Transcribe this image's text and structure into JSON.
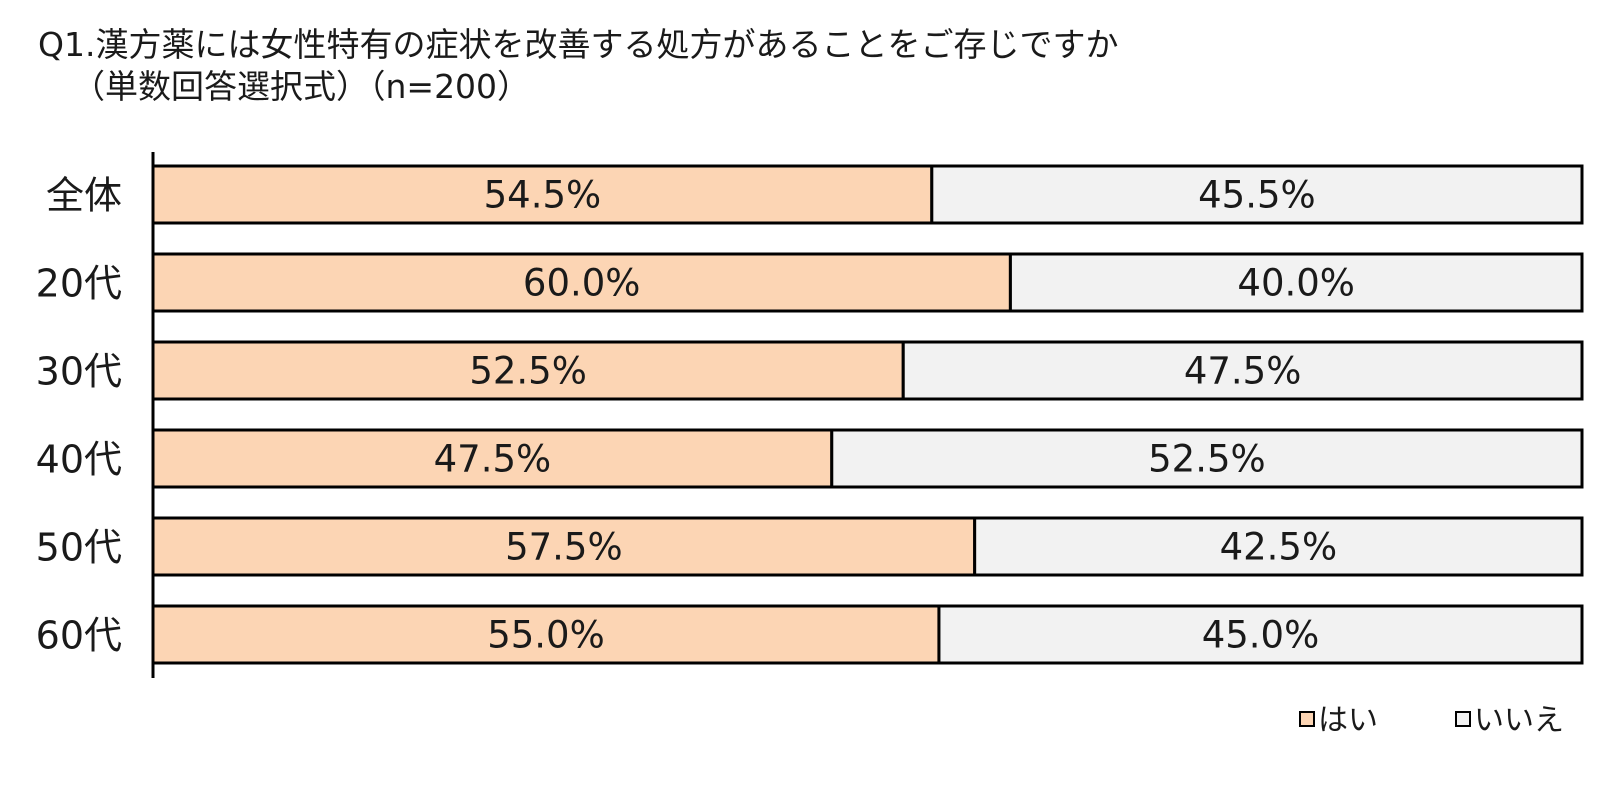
{
  "chart_data": {
    "type": "bar",
    "orientation": "horizontal",
    "stacked": "100%",
    "title_line1": "Q1.漢方薬には女性特有の症状を改善する処方があることをご存じですか",
    "title_line2": "（単数回答選択式）（n=200）",
    "categories": [
      "全体",
      "20代",
      "30代",
      "40代",
      "50代",
      "60代"
    ],
    "series": [
      {
        "name": "はい",
        "color": "#fcd5b4",
        "values": [
          54.5,
          60.0,
          52.5,
          47.5,
          57.5,
          55.0
        ],
        "labels": [
          "54.5%",
          "60.0%",
          "52.5%",
          "47.5%",
          "57.5%",
          "55.0%"
        ]
      },
      {
        "name": "いいえ",
        "color": "#f2f2f2",
        "values": [
          45.5,
          40.0,
          47.5,
          52.5,
          42.5,
          45.0
        ],
        "labels": [
          "45.5%",
          "40.0%",
          "47.5%",
          "52.5%",
          "42.5%",
          "45.0%"
        ]
      }
    ],
    "xlim": [
      0,
      100
    ],
    "grid": false,
    "legend_position": "bottom-right"
  }
}
